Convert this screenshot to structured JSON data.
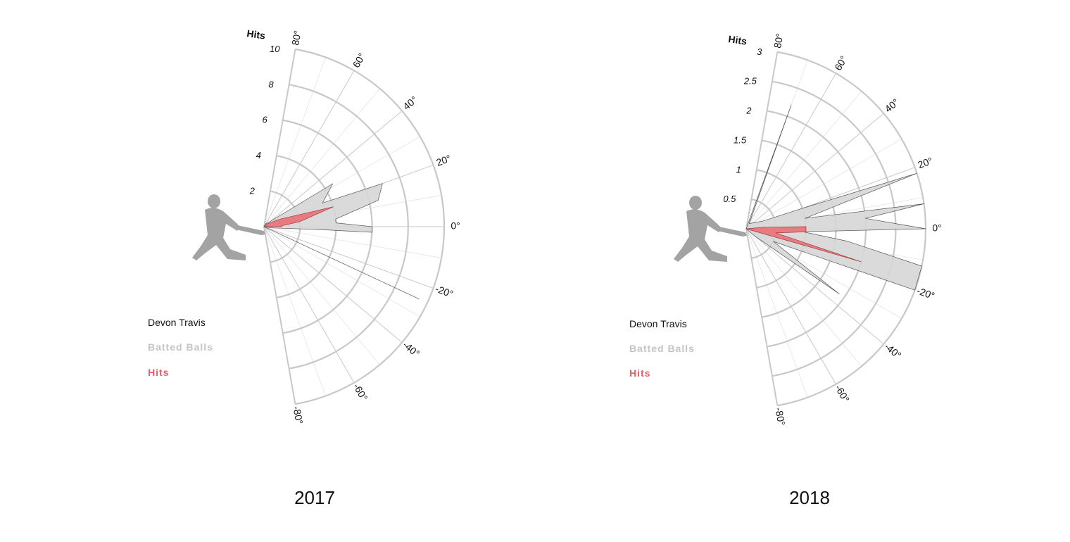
{
  "colors": {
    "grid": "#c8c8c8",
    "grid_light": "#e4e4e4",
    "batted_fill": "#d6d6d6",
    "batted_stroke": "#555555",
    "hits_fill": "#e8767c",
    "hits_stroke": "#9a3a3a",
    "silhouette": "#a3a3a3",
    "legend_balls": "#c4c4c4",
    "legend_hits": "#ea5d66"
  },
  "chart_data": [
    {
      "type": "radial-area",
      "year_label": "2017",
      "player": "Devon Travis",
      "axis_title": "Hits",
      "r_max": 10,
      "r_ticks": [
        2,
        4,
        6,
        8,
        10
      ],
      "r_tick_labels": [
        "2",
        "4",
        "6",
        "8",
        "10"
      ],
      "angle_range": [
        -80,
        80
      ],
      "angle_tick_labels": [
        "80°",
        "60°",
        "40°",
        "20°",
        "0°",
        "-20°",
        "-40°",
        "-60°",
        "-80°"
      ],
      "legend": [
        "Devon Travis",
        "Batted Balls",
        "Hits"
      ],
      "series": [
        {
          "name": "Batted Balls",
          "points": [
            [
              -28,
              0
            ],
            [
              -25,
              9.5
            ],
            [
              -20,
              0
            ],
            [
              -8,
              0.5
            ],
            [
              -3,
              3
            ],
            [
              -3,
              6
            ],
            [
              0,
              6
            ],
            [
              3,
              4
            ],
            [
              6,
              4
            ],
            [
              13,
              6.5
            ],
            [
              20,
              7
            ],
            [
              22,
              3.5
            ],
            [
              32,
              4.5
            ],
            [
              45,
              0.3
            ],
            [
              60,
              0.2
            ],
            [
              70,
              0
            ]
          ]
        },
        {
          "name": "Hits",
          "points": [
            [
              -28,
              0
            ],
            [
              0,
              1
            ],
            [
              3,
              1
            ],
            [
              8,
              2
            ],
            [
              16,
              4
            ],
            [
              25,
              1
            ],
            [
              45,
              0.2
            ],
            [
              60,
              0
            ]
          ]
        }
      ]
    },
    {
      "type": "radial-area",
      "year_label": "2018",
      "player": "Devon Travis",
      "axis_title": "Hits",
      "r_max": 3,
      "r_ticks": [
        0.5,
        1,
        1.5,
        2,
        2.5,
        3
      ],
      "r_tick_labels": [
        "0.5",
        "1",
        "1.5",
        "2",
        "2.5",
        "3"
      ],
      "angle_range": [
        -80,
        80
      ],
      "angle_tick_labels": [
        "80°",
        "60°",
        "40°",
        "20°",
        "0°",
        "-20°",
        "-40°",
        "-60°",
        "-80°"
      ],
      "legend": [
        "Devon Travis",
        "Batted Balls",
        "Hits"
      ],
      "series": [
        {
          "name": "Batted Balls",
          "points": [
            [
              -40,
              0.2
            ],
            [
              -35,
              1.9
            ],
            [
              -25,
              0.5
            ],
            [
              -20,
              3
            ],
            [
              -12,
              3
            ],
            [
              -7,
              1.7
            ],
            [
              -3,
              0.95
            ],
            [
              0,
              3
            ],
            [
              5,
              2
            ],
            [
              8,
              3
            ],
            [
              10,
              1
            ],
            [
              18,
              3
            ],
            [
              20,
              1
            ],
            [
              25,
              0.3
            ],
            [
              60,
              0.1
            ],
            [
              70,
              2.2
            ],
            [
              72,
              0
            ]
          ]
        },
        {
          "name": "Hits",
          "points": [
            [
              -20,
              0
            ],
            [
              -16,
              2
            ],
            [
              -8,
              0.5
            ],
            [
              -3,
              1
            ],
            [
              2,
              1
            ],
            [
              5,
              0.3
            ],
            [
              25,
              0
            ]
          ]
        }
      ]
    }
  ]
}
